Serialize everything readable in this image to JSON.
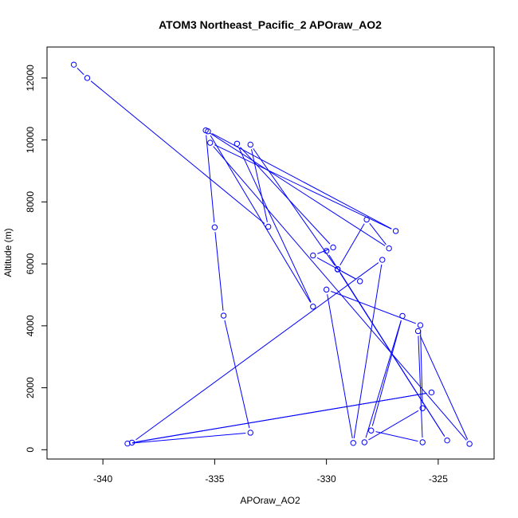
{
  "chart_data": {
    "type": "scatter",
    "title": "ATOM3 Northeast_Pacific_2 APOraw_AO2",
    "xlabel": "APOraw_AO2",
    "ylabel": "Altitude (m)",
    "xlim": [
      -342.5,
      -322.5
    ],
    "ylim": [
      -300,
      13000
    ],
    "x_ticks": [
      -340,
      -335,
      -330,
      -325
    ],
    "y_ticks": [
      0,
      2000,
      4000,
      6000,
      8000,
      10000,
      12000
    ],
    "grid": false,
    "series_color": "#0000ff",
    "marker": "open-circle",
    "connected": true,
    "points": [
      {
        "x": -341.3,
        "y": 12430
      },
      {
        "x": -340.7,
        "y": 12000
      },
      {
        "x": -332.6,
        "y": 7200
      },
      {
        "x": -333.4,
        "y": 9850
      },
      {
        "x": -329.5,
        "y": 5820
      },
      {
        "x": -328.2,
        "y": 7430
      },
      {
        "x": -327.2,
        "y": 6500
      },
      {
        "x": -335.4,
        "y": 10310
      },
      {
        "x": -335.0,
        "y": 7180
      },
      {
        "x": -334.6,
        "y": 4330
      },
      {
        "x": -333.4,
        "y": 550
      },
      {
        "x": -338.9,
        "y": 200
      },
      {
        "x": -325.3,
        "y": 1850
      },
      {
        "x": -338.7,
        "y": 230
      },
      {
        "x": -327.5,
        "y": 6130
      },
      {
        "x": -328.8,
        "y": 220
      },
      {
        "x": -330.0,
        "y": 5170
      },
      {
        "x": -325.8,
        "y": 4020
      },
      {
        "x": -325.7,
        "y": 1340
      },
      {
        "x": -328.3,
        "y": 240
      },
      {
        "x": -326.6,
        "y": 4320
      },
      {
        "x": -328.0,
        "y": 620
      },
      {
        "x": -325.7,
        "y": 240
      },
      {
        "x": -325.9,
        "y": 3830
      },
      {
        "x": -323.6,
        "y": 190
      },
      {
        "x": -335.2,
        "y": 9910
      },
      {
        "x": -326.9,
        "y": 7060
      },
      {
        "x": -335.3,
        "y": 10280
      },
      {
        "x": -330.6,
        "y": 4620
      },
      {
        "x": -334.0,
        "y": 9880
      },
      {
        "x": -329.7,
        "y": 6530
      },
      {
        "x": -330.6,
        "y": 6270
      },
      {
        "x": -328.5,
        "y": 5440
      },
      {
        "x": -329.5,
        "y": 5830
      },
      {
        "x": -324.6,
        "y": 300
      },
      {
        "x": -330.0,
        "y": 6420
      }
    ]
  }
}
